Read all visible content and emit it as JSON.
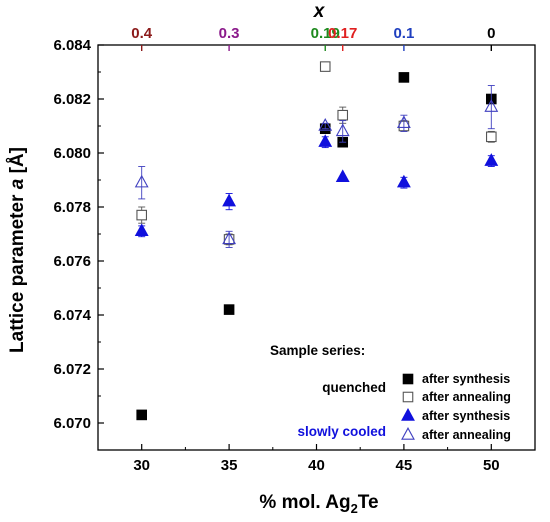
{
  "chart_data": {
    "type": "scatter",
    "xlabel_parts": {
      "prefix": "% mol. Ag",
      "sub": "2",
      "suffix": "Te"
    },
    "ylabel_parts": {
      "prefix": "Lattice parameter ",
      "italic": "a",
      "suffix": " [Å]"
    },
    "top_axis_label": "x",
    "xlim": [
      27.5,
      52.5
    ],
    "ylim": [
      6.069,
      6.084
    ],
    "x_ticks": [
      30,
      35,
      40,
      45,
      50
    ],
    "x_tick_labels": [
      "30",
      "35",
      "40",
      "45",
      "50"
    ],
    "y_ticks": [
      6.07,
      6.072,
      6.074,
      6.076,
      6.078,
      6.08,
      6.082,
      6.084
    ],
    "y_tick_labels": [
      "6.070",
      "6.072",
      "6.074",
      "6.076",
      "6.078",
      "6.080",
      "6.082",
      "6.084"
    ],
    "top_ticks": [
      {
        "x": 30,
        "label": "0.4",
        "color": "#8b1a1a"
      },
      {
        "x": 35,
        "label": "0.3",
        "color": "#8b1a8b"
      },
      {
        "x": 40.5,
        "label": "0.19",
        "color": "#1e8a1e"
      },
      {
        "x": 41.5,
        "label": "0.17",
        "color": "#e02020"
      },
      {
        "x": 45,
        "label": "0.1",
        "color": "#1f3fbf"
      },
      {
        "x": 50,
        "label": "0",
        "color": "#000000"
      }
    ],
    "series": [
      {
        "name": "after synthesis",
        "group": "quenched",
        "marker": "filled-square",
        "color": "#000000",
        "x": [
          30,
          35,
          40.5,
          41.5,
          45,
          50
        ],
        "y": [
          6.0703,
          6.0742,
          6.0809,
          6.0804,
          6.0828,
          6.082
        ],
        "err": [
          0,
          0,
          0,
          0,
          0,
          0
        ]
      },
      {
        "name": "after annealing",
        "group": "quenched",
        "marker": "open-square",
        "color": "#555555",
        "x": [
          30,
          35,
          40.5,
          41.5,
          45,
          50
        ],
        "y": [
          6.0777,
          6.0768,
          6.0832,
          6.0814,
          6.081,
          6.0806
        ],
        "err": [
          0.0003,
          0.0002,
          0,
          0.0003,
          0.0002,
          0.0002
        ]
      },
      {
        "name": "after synthesis",
        "group": "slowly cooled",
        "marker": "filled-triangle",
        "color": "#1010dd",
        "x": [
          30,
          35,
          40.5,
          41.5,
          45,
          50
        ],
        "y": [
          6.0771,
          6.0782,
          6.0804,
          6.0791,
          6.0789,
          6.0797
        ],
        "err": [
          0.0002,
          0.0003,
          0.0002,
          0,
          0.0002,
          0.0002
        ]
      },
      {
        "name": "after annealing",
        "group": "slowly cooled",
        "marker": "open-triangle",
        "color": "#4040c0",
        "x": [
          30,
          35,
          40.5,
          41.5,
          45,
          50
        ],
        "y": [
          6.0789,
          6.0768,
          6.081,
          6.0808,
          6.0811,
          6.0817
        ],
        "err": [
          0.0006,
          0.0003,
          0.0001,
          0.0004,
          0.0003,
          0.0008
        ]
      }
    ],
    "legend": {
      "placement": "bottom-right",
      "heading": "Sample series:",
      "groups": [
        {
          "label": "quenched",
          "color": "#000000"
        },
        {
          "label": "slowly cooled",
          "color": "#1010dd"
        }
      ],
      "entries": [
        {
          "marker": "filled-square",
          "color": "#000000",
          "label": "after synthesis"
        },
        {
          "marker": "open-square",
          "color": "#555555",
          "label": "after annealing"
        },
        {
          "marker": "filled-triangle",
          "color": "#1010dd",
          "label": "after synthesis"
        },
        {
          "marker": "open-triangle",
          "color": "#4040c0",
          "label": "after annealing"
        }
      ]
    },
    "grid": false
  }
}
